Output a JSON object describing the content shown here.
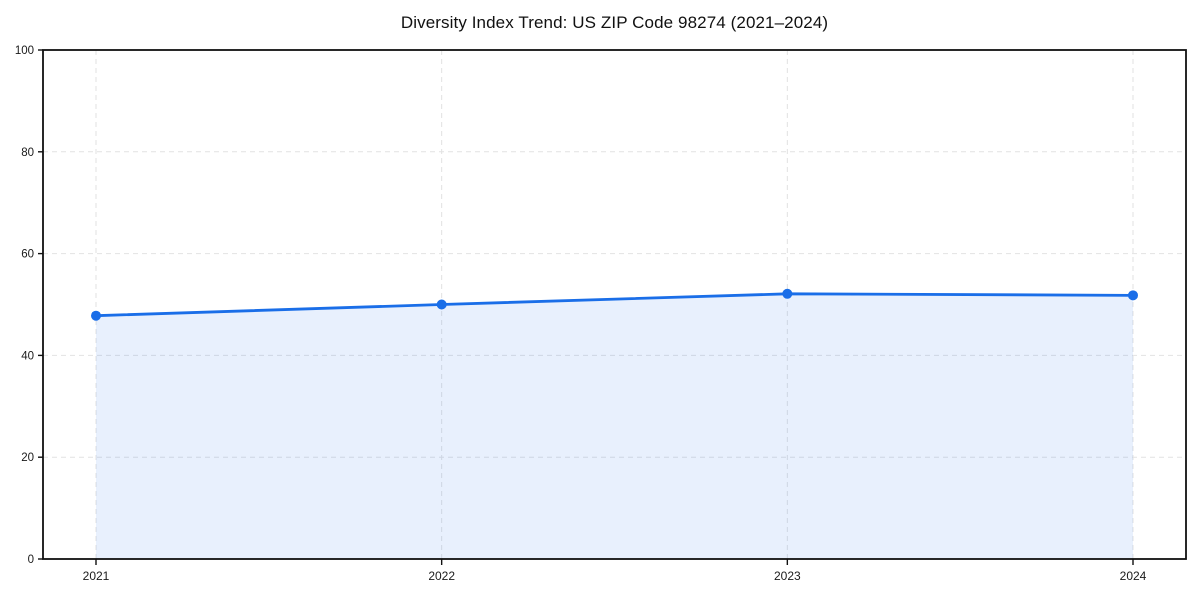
{
  "page": {
    "background": "#ffffff"
  },
  "chart_data": {
    "type": "line",
    "title": "Diversity Index Trend: US ZIP Code 98274 (2021–2024)",
    "categories": [
      "2021",
      "2022",
      "2023",
      "2024"
    ],
    "values": [
      47.8,
      50.0,
      52.1,
      51.8
    ],
    "series_name": "Diversity Index",
    "xlabel": "",
    "ylabel": "",
    "ylim": [
      0,
      100
    ],
    "yticks": [
      0,
      20,
      40,
      60,
      80,
      100
    ],
    "grid": true,
    "grid_style": "dashed",
    "legend": "none",
    "area_fill": true,
    "colors": {
      "line": "#1a6ee8",
      "marker": "#1a6ee8",
      "area": "rgba(26,110,232,0.10)",
      "grid": "#e2e2e2",
      "spine": "#111111",
      "tick_label": "#1a1a1a",
      "title": "#111111"
    }
  }
}
